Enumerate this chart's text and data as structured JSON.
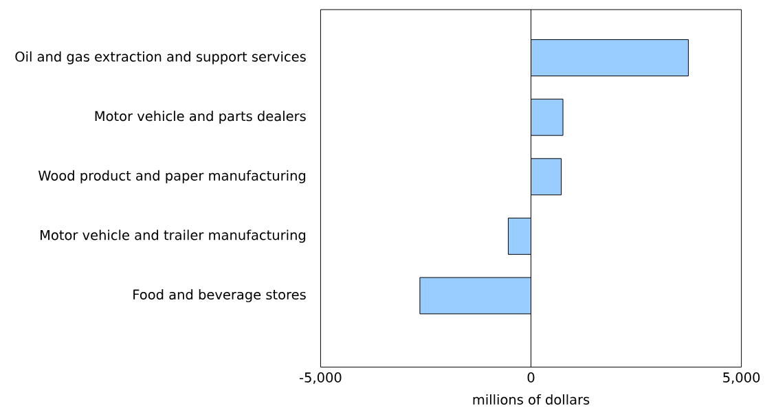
{
  "chart_data": {
    "type": "bar",
    "orientation": "horizontal",
    "xlabel": "millions of dollars",
    "categories": [
      "Oil and gas extraction and support services",
      "Motor vehicle and parts dealers",
      "Wood product and paper manufacturing",
      "Motor vehicle and trailer manufacturing",
      "Food and beverage stores"
    ],
    "values": [
      3740,
      760,
      720,
      -540,
      -2640
    ],
    "color": "#99ccff",
    "xlim": [
      -5000,
      5000
    ],
    "xticks": [
      {
        "value": -5000,
        "label": "-5,000"
      },
      0,
      {
        "value": 5000,
        "label": "5,000"
      }
    ],
    "ref_lines": [
      {
        "axis": "x",
        "value": 0
      }
    ],
    "grid": false
  }
}
